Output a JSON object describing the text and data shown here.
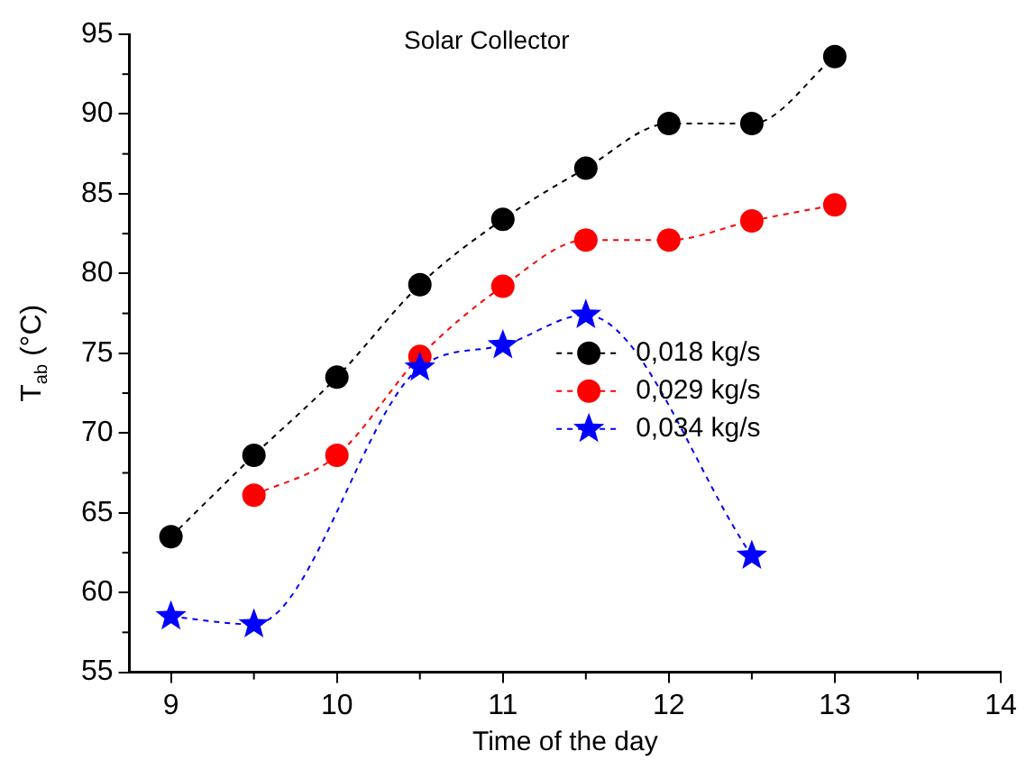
{
  "chart_data": {
    "type": "line",
    "title": "Solar Collector",
    "xlabel": "Time of the day",
    "ylabel": "T$_{ab}$ (°C)",
    "xlim": [
      8.75,
      14
    ],
    "xticks": [
      9,
      10,
      11,
      12,
      13,
      14
    ],
    "ylim": [
      55,
      95
    ],
    "yticks": [
      55,
      60,
      65,
      70,
      75,
      80,
      85,
      90,
      95
    ],
    "grid": false,
    "legend": "right",
    "line_style": "dashed",
    "series": [
      {
        "name": "0,018 kg/s",
        "color": "#000000",
        "marker": "circle",
        "x": [
          9,
          9.5,
          10,
          10.5,
          11,
          11.5,
          12,
          12.5,
          13
        ],
        "values": [
          63.5,
          68.6,
          73.5,
          79.3,
          83.4,
          86.6,
          89.4,
          89.4,
          93.6
        ]
      },
      {
        "name": "0,029 kg/s",
        "color": "#ff0000",
        "marker": "circle",
        "x": [
          9.5,
          10,
          10.5,
          11,
          11.5,
          12,
          12.5,
          13
        ],
        "values": [
          66.1,
          68.6,
          74.8,
          79.2,
          82.1,
          82.1,
          83.3,
          84.3
        ]
      },
      {
        "name": "0,034 kg/s",
        "color": "#0000ff",
        "marker": "star",
        "x": [
          9,
          9.5,
          10.5,
          11,
          11.5,
          12.5
        ],
        "values": [
          58.5,
          58.0,
          74.1,
          75.5,
          77.4,
          62.3
        ]
      }
    ]
  }
}
